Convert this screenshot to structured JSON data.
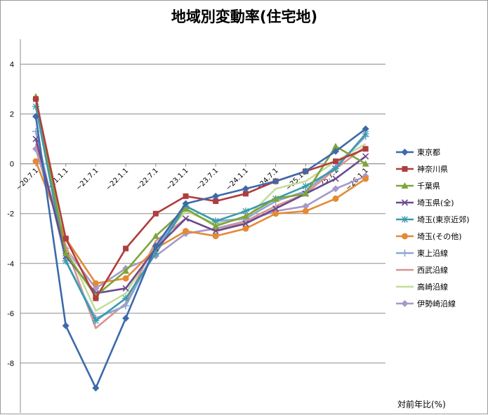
{
  "chart_data": {
    "type": "line",
    "title": "地域別変動率(住宅地)",
    "ylabel": "対前年比(%)",
    "xlabel": "",
    "ylim": [
      -10,
      5
    ],
    "yticks": [
      4,
      2,
      0,
      -2,
      -4,
      -6,
      -8
    ],
    "grid": true,
    "legend_position": "right",
    "categories": [
      "~20.7.1",
      "~21.1.1",
      "~21.7.1",
      "~22.1.1",
      "~22.7.1",
      "~23.1.1",
      "~23.7.1",
      "~24.1.1",
      "~24.7.1",
      "~25.1.1",
      "~25.7.1",
      "~26.1.1"
    ],
    "series": [
      {
        "name": "東京都",
        "color": "#3C6AAA",
        "marker": "diamond",
        "values": [
          1.9,
          -6.5,
          -9.0,
          -6.2,
          -3.3,
          -1.6,
          -1.3,
          -1.0,
          -0.7,
          -0.3,
          0.5,
          1.4
        ]
      },
      {
        "name": "神奈川県",
        "color": "#B03D3D",
        "marker": "square",
        "values": [
          2.6,
          -3.0,
          -5.4,
          -3.4,
          -2.0,
          -1.3,
          -1.5,
          -1.2,
          -0.7,
          -0.3,
          0.1,
          0.6
        ]
      },
      {
        "name": "千葉県",
        "color": "#7EA43A",
        "marker": "triangle",
        "values": [
          2.7,
          -3.6,
          -5.3,
          -4.3,
          -2.9,
          -1.8,
          -2.5,
          -2.1,
          -1.4,
          -1.2,
          0.7,
          0.0
        ]
      },
      {
        "name": "埼玉県(全)",
        "color": "#6A4A8E",
        "marker": "x",
        "values": [
          1.0,
          -3.7,
          -5.2,
          -5.0,
          -3.4,
          -2.2,
          -2.7,
          -2.4,
          -1.8,
          -1.2,
          -0.6,
          0.3
        ]
      },
      {
        "name": "埼玉(東京近郊)",
        "color": "#3A9AAE",
        "marker": "star",
        "values": [
          2.3,
          -3.9,
          -6.3,
          -5.4,
          -3.6,
          -1.7,
          -2.3,
          -1.9,
          -1.4,
          -0.9,
          -0.2,
          1.2
        ]
      },
      {
        "name": "埼玉(その他)",
        "color": "#E48A35",
        "marker": "circle",
        "values": [
          0.1,
          -3.0,
          -4.8,
          -4.6,
          -3.4,
          -2.7,
          -2.9,
          -2.6,
          -2.0,
          -1.9,
          -1.4,
          -0.6
        ]
      },
      {
        "name": "東上沿線",
        "color": "#8AA6D6",
        "marker": "plus",
        "values": [
          1.3,
          -3.9,
          -6.2,
          -5.7,
          -3.4,
          -1.7,
          -2.3,
          -2.2,
          -1.5,
          -1.1,
          -0.1,
          1.1
        ]
      },
      {
        "name": "西武沿線",
        "color": "#DA9290",
        "marker": "none",
        "values": [
          0.8,
          -3.3,
          -6.6,
          -5.6,
          -3.1,
          -2.2,
          -2.7,
          -2.3,
          -1.7,
          -1.2,
          -0.2,
          0.7
        ]
      },
      {
        "name": "高崎沿線",
        "color": "#C4DC9A",
        "marker": "none",
        "values": [
          2.6,
          -3.3,
          -5.9,
          -5.2,
          -3.3,
          -1.9,
          -2.4,
          -2.2,
          -1.0,
          -0.7,
          0.1,
          0.8
        ]
      },
      {
        "name": "伊勢崎沿線",
        "color": "#A798C8",
        "marker": "diamond",
        "values": [
          0.6,
          -3.4,
          -5.0,
          -4.2,
          -3.7,
          -2.8,
          -2.6,
          -2.3,
          -1.9,
          -1.7,
          -1.0,
          -0.5
        ]
      }
    ]
  }
}
